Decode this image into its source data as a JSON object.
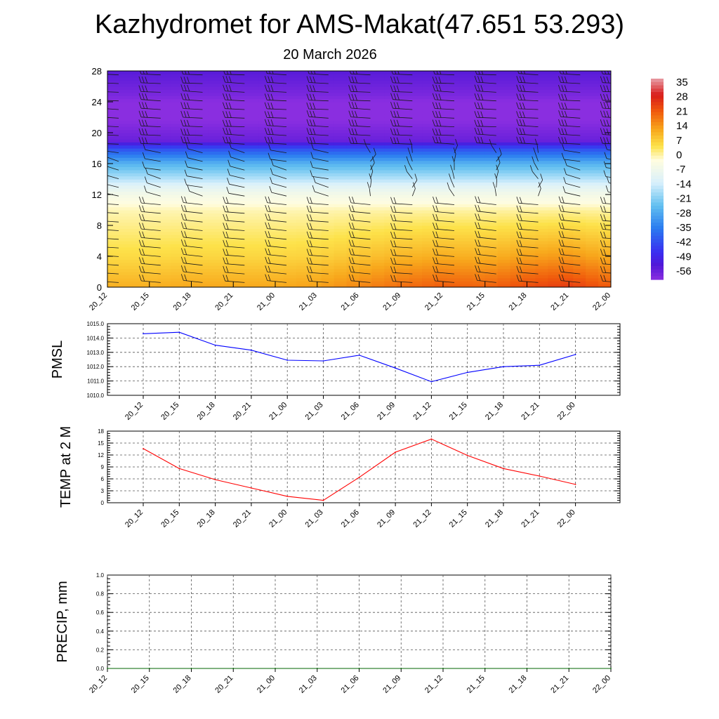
{
  "title": "Kazhydromet for AMS-Makat(47.651 53.293)",
  "subtitle": "20 March 2026",
  "time_labels": [
    "20_12",
    "20_15",
    "20_18",
    "20_21",
    "21_00",
    "21_03",
    "21_06",
    "21_09",
    "21_12",
    "21_15",
    "21_18",
    "21_21",
    "22_00"
  ],
  "chart_data": [
    {
      "type": "heatmap",
      "name": "cross-section",
      "description": "Time-height temperature cross-section with wind barbs",
      "x": [
        "20_12",
        "20_15",
        "20_18",
        "20_21",
        "21_00",
        "21_03",
        "21_06",
        "21_09",
        "21_12",
        "21_15",
        "21_18",
        "21_21",
        "22_00"
      ],
      "y_ticks": [
        0,
        4,
        8,
        12,
        16,
        20,
        24,
        28
      ],
      "ylim": [
        0,
        28
      ],
      "profile_heights": [
        0,
        2,
        4,
        6,
        8,
        10,
        12,
        13,
        14,
        16,
        18,
        19,
        21,
        23,
        25,
        28
      ],
      "profile_temps": [
        12,
        9,
        6,
        4,
        2,
        0,
        -5,
        -10,
        -16,
        -26,
        -42,
        -56,
        -59,
        -62,
        -58,
        -54
      ],
      "surface_warming_by_time": [
        0,
        0,
        1,
        1,
        1,
        2,
        5,
        8,
        10,
        9,
        12,
        14,
        10
      ],
      "colorbar_labels": [
        "35",
        "28",
        "21",
        "14",
        "7",
        "0",
        "-7",
        "-14",
        "-21",
        "-28",
        "-35",
        "-42",
        "-49",
        "-56"
      ],
      "colorbar_range": [
        -60,
        38
      ],
      "colors": [
        "#e8a0a8",
        "#d81b1b",
        "#f05a0c",
        "#f8a81c",
        "#fde24a",
        "#fffde0",
        "#d8f0fc",
        "#62c0f0",
        "#2a7cf0",
        "#3a2cf0",
        "#5018d8",
        "#8a2ee0"
      ]
    },
    {
      "type": "line",
      "ylabel": "PMSL",
      "x": [
        "20_12",
        "20_15",
        "20_18",
        "20_21",
        "21_00",
        "21_03",
        "21_06",
        "21_09",
        "21_12",
        "21_15",
        "21_18",
        "21_21",
        "22_00"
      ],
      "values": [
        1014.3,
        1014.4,
        1013.5,
        1013.15,
        1012.45,
        1012.4,
        1012.8,
        1011.9,
        1010.95,
        1011.6,
        1012.0,
        1012.1,
        1012.85
      ],
      "ylim": [
        1010.0,
        1015.0
      ],
      "y_ticks": [
        "1010.0",
        "1011.0",
        "1012.0",
        "1013.0",
        "1014.0",
        "1015.0"
      ],
      "color": "#0000ff"
    },
    {
      "type": "line",
      "ylabel": "TEMP at 2 M",
      "x": [
        "20_12",
        "20_15",
        "20_18",
        "20_21",
        "21_00",
        "21_03",
        "21_06",
        "21_09",
        "21_12",
        "21_15",
        "21_18",
        "21_21",
        "22_00"
      ],
      "values": [
        13.6,
        8.6,
        5.8,
        3.7,
        1.6,
        0.6,
        6.4,
        12.7,
        16.0,
        11.9,
        8.6,
        6.7,
        4.6
      ],
      "ylim": [
        0,
        18
      ],
      "y_ticks": [
        "0",
        "3",
        "6",
        "9",
        "12",
        "15",
        "18"
      ],
      "color": "#ff0000"
    },
    {
      "type": "line",
      "ylabel": "PRECIP, mm",
      "x": [
        "20_12",
        "20_15",
        "20_18",
        "20_21",
        "21_00",
        "21_03",
        "21_06",
        "21_09",
        "21_12",
        "21_15",
        "21_18",
        "21_21",
        "22_00"
      ],
      "values": [
        0,
        0,
        0,
        0,
        0,
        0,
        0,
        0,
        0,
        0,
        0,
        0,
        0
      ],
      "ylim": [
        0,
        1.0
      ],
      "y_ticks": [
        "0.0",
        "0.2",
        "0.4",
        "0.6",
        "0.8",
        "1.0"
      ],
      "color": "#006400"
    }
  ]
}
